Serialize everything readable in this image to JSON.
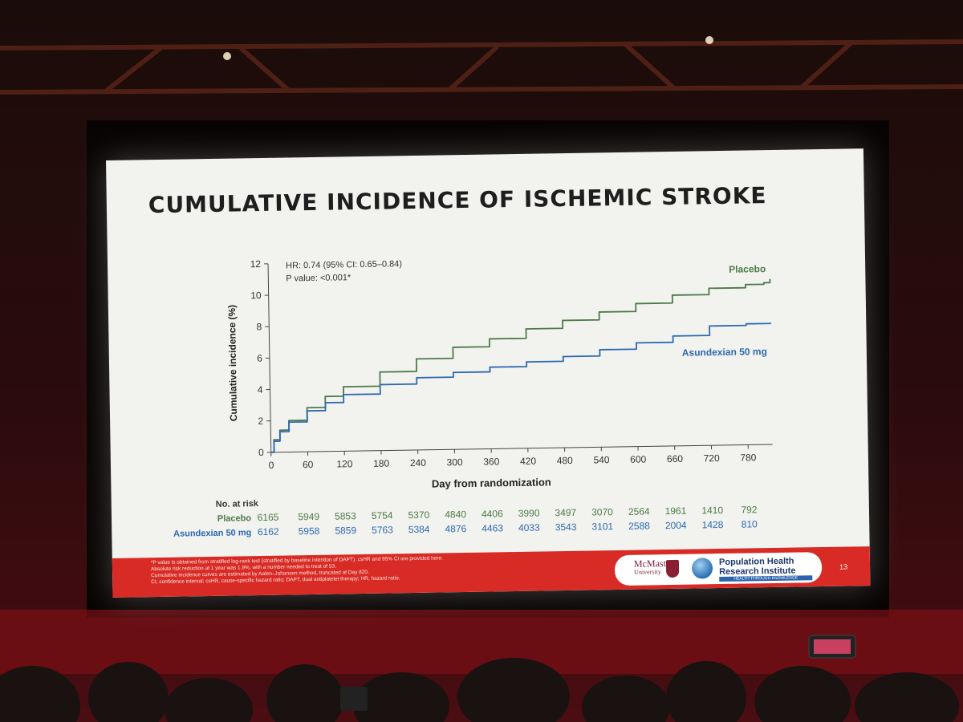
{
  "slide": {
    "title": "CUMULATIVE INCIDENCE OF ISCHEMIC STROKE",
    "page_number": "13",
    "footnotes": [
      "*P value is obtained from stratified log-rank test (stratified by baseline intention of DAPT). csHR and 95% CI are provided here.",
      "Absolute risk reduction at 1 year was 1.9%, with a number needed to treat of 53.",
      "Cumulative incidence curves are estimated by Aalen–Johansen method, truncated at Day 820.",
      "CI, confidence interval; csHR, cause-specific hazard ratio; DAPT, dual antiplatelet therapy; HR, hazard ratio."
    ],
    "logos": {
      "mcmaster_line1": "McMaster",
      "mcmaster_line2": "University",
      "phri_line1": "Population Health",
      "phri_line2": "Research Institute",
      "phri_tagline": "HEALTH THROUGH KNOWLEDGE"
    },
    "colors": {
      "placebo": "#4d7a47",
      "asundexian": "#2c69b0",
      "footer": "#d92b25"
    }
  },
  "chart_data": {
    "type": "line",
    "title": "CUMULATIVE INCIDENCE OF ISCHEMIC STROKE",
    "xlabel": "Day from randomization",
    "ylabel": "Cumulative incidence (%)",
    "xlim": [
      0,
      820
    ],
    "ylim": [
      0,
      12
    ],
    "xticks": [
      0,
      60,
      120,
      180,
      240,
      300,
      360,
      420,
      480,
      540,
      600,
      660,
      720,
      780
    ],
    "yticks": [
      0,
      2,
      4,
      6,
      8,
      10,
      12
    ],
    "annotations": [
      "HR: 0.74 (95% CI: 0.65–0.84)",
      "P value: <0.001*"
    ],
    "series": [
      {
        "name": "Placebo",
        "x": [
          0,
          5,
          15,
          30,
          60,
          90,
          120,
          180,
          240,
          300,
          360,
          420,
          480,
          540,
          600,
          660,
          720,
          780,
          810,
          820
        ],
        "y": [
          0,
          0.8,
          1.4,
          2.0,
          2.8,
          3.5,
          4.1,
          5.0,
          5.8,
          6.5,
          7.0,
          7.6,
          8.1,
          8.6,
          9.1,
          9.6,
          10.0,
          10.2,
          10.3,
          10.5
        ]
      },
      {
        "name": "Asundexian 50 mg",
        "x": [
          0,
          5,
          15,
          30,
          60,
          90,
          120,
          180,
          240,
          300,
          360,
          420,
          480,
          540,
          600,
          660,
          720,
          780,
          820
        ],
        "y": [
          0,
          0.7,
          1.3,
          1.9,
          2.6,
          3.1,
          3.6,
          4.2,
          4.6,
          4.9,
          5.2,
          5.5,
          5.8,
          6.2,
          6.6,
          7.0,
          7.6,
          7.7,
          7.7
        ]
      }
    ],
    "risk_table": {
      "header": "No. at risk",
      "rows": [
        {
          "name": "Placebo",
          "values": [
            6165,
            5949,
            5853,
            5754,
            5370,
            4840,
            4406,
            3990,
            3497,
            3070,
            2564,
            1961,
            1410,
            792
          ]
        },
        {
          "name": "Asundexian 50 mg",
          "values": [
            6162,
            5958,
            5859,
            5763,
            5384,
            4876,
            4463,
            4033,
            3543,
            3101,
            2588,
            2004,
            1428,
            810
          ]
        }
      ]
    }
  }
}
